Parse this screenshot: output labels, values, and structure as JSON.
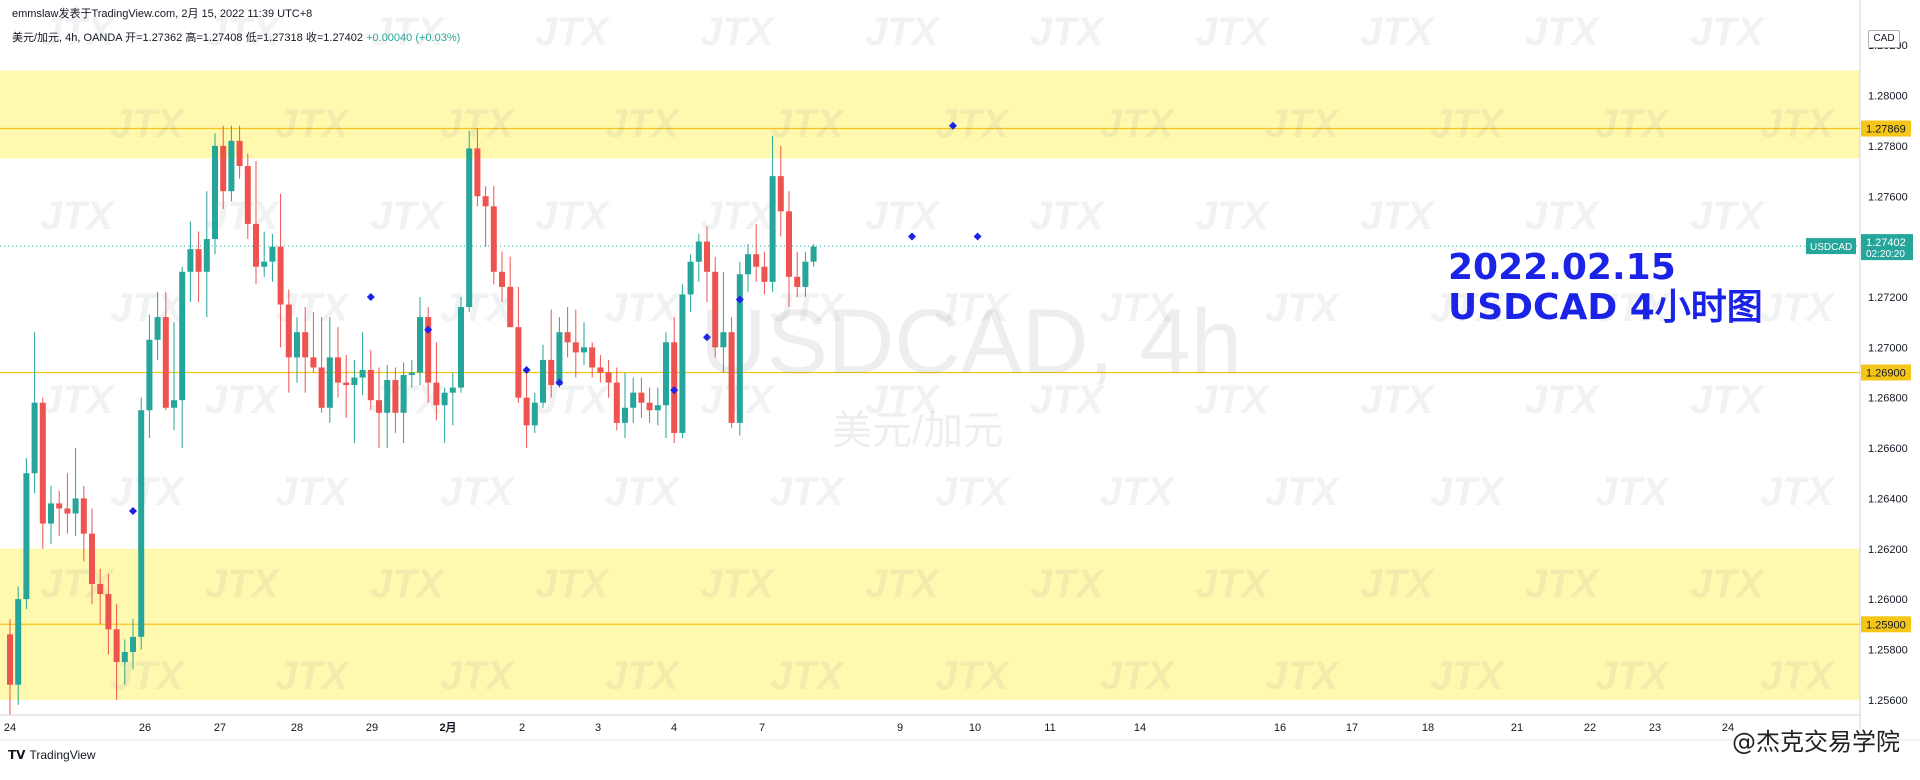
{
  "header": {
    "publish_line": "emmslaw发表于TradingView.com, 2月 15, 2022 11:39 UTC+8",
    "symbol": "美元/加元, 4h, OANDA",
    "open_label": "开=1.27362",
    "high_label": "高=1.27408",
    "low_label": "低=1.27318",
    "close_label": "收=1.27402",
    "change_label": "+0.00040 (+0.03%)"
  },
  "watermark": {
    "main": "USDCAD, 4h",
    "sub": "美元/加元"
  },
  "annotation": {
    "line1": "2022.02.15",
    "line2": "USDCAD 4小时图"
  },
  "footer": {
    "logo_label": "TradingView",
    "brand": "@杰克交易学院",
    "currency_box": "CAD"
  },
  "colors": {
    "up": "#26a69a",
    "down": "#ef5350",
    "zone": "#fff9b0",
    "level_line": "#f5c518",
    "marker": "#1a23e6",
    "annotation": "#1a23e6"
  },
  "chart_data": {
    "type": "candlestick",
    "symbol": "USDCAD",
    "timeframe": "4h",
    "ylim": [
      1.255,
      1.283
    ],
    "y_ticks": [
      "1.25600",
      "1.25800",
      "1.26000",
      "1.26200",
      "1.26400",
      "1.26600",
      "1.26800",
      "1.27000",
      "1.27200",
      "1.27400",
      "1.27600",
      "1.27800",
      "1.28000",
      "1.28200"
    ],
    "x_labels": [
      "24",
      "26",
      "27",
      "28",
      "29",
      "2月",
      "2",
      "3",
      "4",
      "7",
      "9",
      "10",
      "11",
      "14",
      "16",
      "17",
      "18",
      "21",
      "22",
      "23",
      "24"
    ],
    "price_labels": [
      {
        "text": "1.27869",
        "value": 1.27869
      },
      {
        "text": "1.26900",
        "value": 1.269
      },
      {
        "text": "1.25900",
        "value": 1.259
      }
    ],
    "current": {
      "symbol": "USDCAD",
      "price": "1.27402",
      "countdown": "02:20:20",
      "value": 1.27402
    },
    "zones": [
      [
        1.2775,
        1.281
      ],
      [
        1.256,
        1.262
      ]
    ],
    "levels": [
      1.27869,
      1.269,
      1.259
    ],
    "candles": [
      [
        1.2586,
        1.2592,
        1.2554,
        1.2566
      ],
      [
        1.2566,
        1.2605,
        1.2558,
        1.26
      ],
      [
        1.26,
        1.2656,
        1.2596,
        1.265
      ],
      [
        1.265,
        1.2706,
        1.2642,
        1.2678
      ],
      [
        1.2678,
        1.268,
        1.262,
        1.263
      ],
      [
        1.263,
        1.2645,
        1.2622,
        1.2638
      ],
      [
        1.2638,
        1.2643,
        1.2625,
        1.2636
      ],
      [
        1.2636,
        1.265,
        1.2626,
        1.2634
      ],
      [
        1.2634,
        1.266,
        1.2625,
        1.264
      ],
      [
        1.264,
        1.2645,
        1.2615,
        1.2626
      ],
      [
        1.2626,
        1.2636,
        1.2598,
        1.2606
      ],
      [
        1.2606,
        1.2612,
        1.259,
        1.2602
      ],
      [
        1.2602,
        1.261,
        1.2578,
        1.2588
      ],
      [
        1.2588,
        1.2598,
        1.256,
        1.2575
      ],
      [
        1.2575,
        1.2584,
        1.2566,
        1.2579
      ],
      [
        1.2579,
        1.2592,
        1.2572,
        1.2585
      ],
      [
        1.2585,
        1.268,
        1.258,
        1.2675
      ],
      [
        1.2675,
        1.2713,
        1.2664,
        1.2703
      ],
      [
        1.2703,
        1.2722,
        1.2695,
        1.2712
      ],
      [
        1.2712,
        1.2722,
        1.2675,
        1.2676
      ],
      [
        1.2676,
        1.271,
        1.2667,
        1.2679
      ],
      [
        1.2679,
        1.2732,
        1.266,
        1.273
      ],
      [
        1.273,
        1.275,
        1.2718,
        1.2739
      ],
      [
        1.2739,
        1.2746,
        1.2718,
        1.273
      ],
      [
        1.273,
        1.2762,
        1.2712,
        1.2743
      ],
      [
        1.2743,
        1.2785,
        1.2737,
        1.278
      ],
      [
        1.278,
        1.2788,
        1.2755,
        1.2762
      ],
      [
        1.2762,
        1.2788,
        1.2758,
        1.2782
      ],
      [
        1.2782,
        1.2788,
        1.2767,
        1.2772
      ],
      [
        1.2772,
        1.2777,
        1.2743,
        1.2749
      ],
      [
        1.2749,
        1.2774,
        1.2725,
        1.2732
      ],
      [
        1.2732,
        1.2746,
        1.2728,
        1.2734
      ],
      [
        1.2734,
        1.2745,
        1.2726,
        1.274
      ],
      [
        1.274,
        1.2761,
        1.27,
        1.2717
      ],
      [
        1.2717,
        1.2723,
        1.2682,
        1.2696
      ],
      [
        1.2696,
        1.2712,
        1.2686,
        1.2706
      ],
      [
        1.2706,
        1.2716,
        1.2682,
        1.2696
      ],
      [
        1.2696,
        1.2714,
        1.269,
        1.2692
      ],
      [
        1.2692,
        1.2712,
        1.2674,
        1.2676
      ],
      [
        1.2676,
        1.2712,
        1.267,
        1.2696
      ],
      [
        1.2696,
        1.2708,
        1.268,
        1.2686
      ],
      [
        1.2686,
        1.2697,
        1.2672,
        1.2685
      ],
      [
        1.2685,
        1.2695,
        1.2662,
        1.2688
      ],
      [
        1.2688,
        1.2706,
        1.2681,
        1.2691
      ],
      [
        1.2691,
        1.2699,
        1.2675,
        1.2679
      ],
      [
        1.2679,
        1.2692,
        1.266,
        1.2674
      ],
      [
        1.2674,
        1.2693,
        1.266,
        1.2687
      ],
      [
        1.2687,
        1.2692,
        1.2666,
        1.2674
      ],
      [
        1.2674,
        1.2694,
        1.2662,
        1.2689
      ],
      [
        1.2689,
        1.2695,
        1.2684,
        1.269
      ],
      [
        1.269,
        1.272,
        1.2685,
        1.2712
      ],
      [
        1.2712,
        1.2716,
        1.2678,
        1.2686
      ],
      [
        1.2686,
        1.2702,
        1.2671,
        1.2677
      ],
      [
        1.2677,
        1.2684,
        1.2662,
        1.2682
      ],
      [
        1.2682,
        1.269,
        1.2669,
        1.2684
      ],
      [
        1.2684,
        1.272,
        1.2682,
        1.2716
      ],
      [
        1.2716,
        1.2786,
        1.2714,
        1.2779
      ],
      [
        1.2779,
        1.2787,
        1.2756,
        1.276
      ],
      [
        1.276,
        1.2764,
        1.274,
        1.2756
      ],
      [
        1.2756,
        1.2764,
        1.2725,
        1.273
      ],
      [
        1.273,
        1.2738,
        1.2718,
        1.2724
      ],
      [
        1.2724,
        1.2736,
        1.271,
        1.2708
      ],
      [
        1.2708,
        1.2724,
        1.2678,
        1.268
      ],
      [
        1.268,
        1.2692,
        1.266,
        1.2669
      ],
      [
        1.2669,
        1.2682,
        1.2666,
        1.2678
      ],
      [
        1.2678,
        1.2701,
        1.2676,
        1.2695
      ],
      [
        1.2695,
        1.2715,
        1.268,
        1.2685
      ],
      [
        1.2685,
        1.2712,
        1.2684,
        1.2706
      ],
      [
        1.2706,
        1.2716,
        1.2696,
        1.2702
      ],
      [
        1.2702,
        1.2715,
        1.2688,
        1.2698
      ],
      [
        1.2698,
        1.271,
        1.2693,
        1.27
      ],
      [
        1.27,
        1.2702,
        1.2688,
        1.2692
      ],
      [
        1.2692,
        1.2697,
        1.2686,
        1.269
      ],
      [
        1.269,
        1.2695,
        1.268,
        1.2686
      ],
      [
        1.2686,
        1.2692,
        1.2667,
        1.267
      ],
      [
        1.267,
        1.269,
        1.2664,
        1.2676
      ],
      [
        1.2676,
        1.2688,
        1.267,
        1.2682
      ],
      [
        1.2682,
        1.2688,
        1.2672,
        1.2678
      ],
      [
        1.2678,
        1.2684,
        1.267,
        1.2675
      ],
      [
        1.2675,
        1.2684,
        1.2669,
        1.2677
      ],
      [
        1.2677,
        1.2706,
        1.2664,
        1.2702
      ],
      [
        1.2702,
        1.2712,
        1.2662,
        1.2666
      ],
      [
        1.2666,
        1.2725,
        1.2664,
        1.2721
      ],
      [
        1.2721,
        1.2737,
        1.2714,
        1.2734
      ],
      [
        1.2734,
        1.2745,
        1.2726,
        1.2742
      ],
      [
        1.2742,
        1.2748,
        1.2718,
        1.273
      ],
      [
        1.273,
        1.2736,
        1.2696,
        1.27
      ],
      [
        1.27,
        1.273,
        1.269,
        1.2706
      ],
      [
        1.2706,
        1.2712,
        1.2668,
        1.267
      ],
      [
        1.267,
        1.2734,
        1.2665,
        1.2729
      ],
      [
        1.2729,
        1.2741,
        1.2722,
        1.2737
      ],
      [
        1.2737,
        1.2749,
        1.2726,
        1.2732
      ],
      [
        1.2732,
        1.2738,
        1.2721,
        1.2726
      ],
      [
        1.2726,
        1.2784,
        1.2722,
        1.2768
      ],
      [
        1.2768,
        1.278,
        1.2744,
        1.2754
      ],
      [
        1.2754,
        1.2762,
        1.2716,
        1.2728
      ],
      [
        1.2728,
        1.2738,
        1.272,
        1.2724
      ],
      [
        1.2724,
        1.2738,
        1.272,
        1.2734
      ],
      [
        1.2734,
        1.2741,
        1.2732,
        1.274
      ]
    ],
    "markers": [
      {
        "index": 15,
        "value": 1.2635
      },
      {
        "index": 44,
        "value": 1.272
      },
      {
        "index": 51,
        "value": 1.2707
      },
      {
        "index": 63,
        "value": 1.2691
      },
      {
        "index": 67,
        "value": 1.2686
      },
      {
        "index": 81,
        "value": 1.2683
      },
      {
        "index": 85,
        "value": 1.2704
      },
      {
        "index": 89,
        "value": 1.2719
      },
      {
        "index": 110,
        "value": 1.2744
      },
      {
        "index": 115,
        "value": 1.2788
      },
      {
        "index": 118,
        "value": 1.2744
      }
    ]
  }
}
